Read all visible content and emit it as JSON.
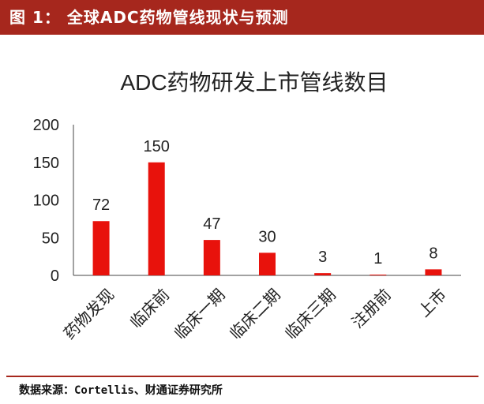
{
  "header": {
    "title": "图 1： 全球ADC药物管线现状与预测"
  },
  "footer": {
    "source": "数据来源：Cortellis、财通证券研究所"
  },
  "colors": {
    "accent": "#a6271d",
    "bar": "#e8120c"
  },
  "chart_data": {
    "type": "bar",
    "title": "ADC药物研发上市管线数目",
    "categories": [
      "药物发现",
      "临床前",
      "临床一期",
      "临床二期",
      "临床三期",
      "注册前",
      "上市"
    ],
    "values": [
      72,
      150,
      47,
      30,
      3,
      1,
      8
    ],
    "data_labels": [
      "72",
      "150",
      "47",
      "30",
      "3",
      "1",
      "8"
    ],
    "ylim": [
      0,
      200
    ],
    "yticks": [
      "0",
      "50",
      "100",
      "150",
      "200"
    ],
    "grid": false,
    "legend": "none"
  }
}
